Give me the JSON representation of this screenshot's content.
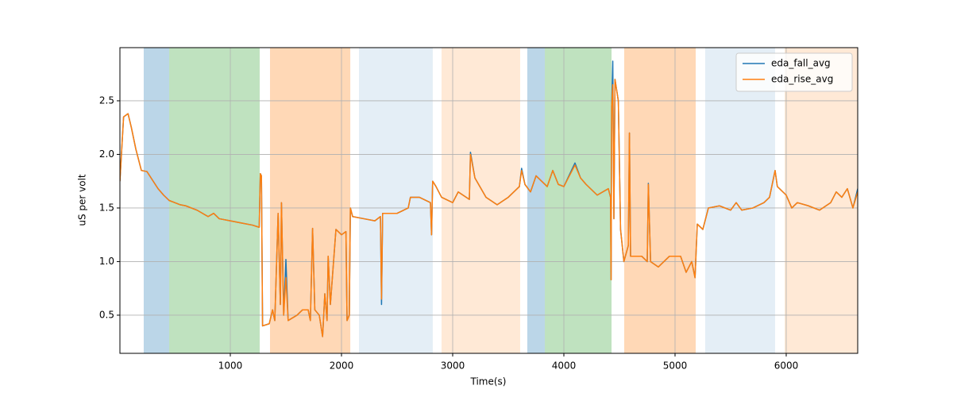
{
  "chart_data": {
    "type": "line",
    "xlabel": "Time(s)",
    "ylabel": "uS per volt",
    "xlim": [
      7,
      6643
    ],
    "ylim": [
      0.144,
      2.996
    ],
    "xticks": [
      1000,
      2000,
      3000,
      4000,
      5000,
      6000
    ],
    "yticks": [
      0.5,
      {
        "value": 1,
        "label": "1.0"
      },
      1.5,
      {
        "value": 2,
        "label": "2.0"
      },
      2.5
    ],
    "grid": true,
    "legend": "upper right",
    "spans": [
      {
        "start": 221,
        "end": 450,
        "color": "#1f77b4",
        "alpha": 0.3
      },
      {
        "start": 450,
        "end": 1264,
        "color": "#2ca02c",
        "alpha": 0.3
      },
      {
        "start": 1357,
        "end": 2079,
        "color": "#ff7f0e",
        "alpha": 0.3
      },
      {
        "start": 2157,
        "end": 2821,
        "color": "#1f77b4",
        "alpha": 0.12
      },
      {
        "start": 2900,
        "end": 3607,
        "color": "#ff7f0e",
        "alpha": 0.17
      },
      {
        "start": 3671,
        "end": 3829,
        "color": "#1f77b4",
        "alpha": 0.3
      },
      {
        "start": 3829,
        "end": 4429,
        "color": "#2ca02c",
        "alpha": 0.3
      },
      {
        "start": 4543,
        "end": 5186,
        "color": "#ff7f0e",
        "alpha": 0.3
      },
      {
        "start": 5271,
        "end": 5900,
        "color": "#1f77b4",
        "alpha": 0.12
      },
      {
        "start": 5986,
        "end": 6643,
        "color": "#ff7f0e",
        "alpha": 0.17
      }
    ],
    "x": [
      7,
      40,
      80,
      110,
      150,
      200,
      250,
      300,
      350,
      400,
      450,
      500,
      550,
      600,
      700,
      800,
      850,
      900,
      1000,
      1100,
      1200,
      1260,
      1270,
      1280,
      1290,
      1350,
      1380,
      1400,
      1430,
      1450,
      1460,
      1480,
      1500,
      1520,
      1600,
      1650,
      1700,
      1720,
      1740,
      1760,
      1800,
      1830,
      1850,
      1870,
      1880,
      1900,
      1950,
      2000,
      2040,
      2050,
      2070,
      2080,
      2100,
      2200,
      2300,
      2350,
      2360,
      2370,
      2500,
      2600,
      2620,
      2700,
      2800,
      2810,
      2820,
      2850,
      2900,
      3000,
      3050,
      3150,
      3160,
      3200,
      3300,
      3400,
      3500,
      3600,
      3620,
      3650,
      3700,
      3750,
      3800,
      3850,
      3900,
      3950,
      4000,
      4100,
      4150,
      4200,
      4300,
      4400,
      4420,
      4425,
      4430,
      4440,
      4450,
      4460,
      4490,
      4510,
      4540,
      4580,
      4590,
      4600,
      4700,
      4750,
      4760,
      4780,
      4850,
      4950,
      5050,
      5100,
      5150,
      5180,
      5200,
      5250,
      5300,
      5400,
      5500,
      5550,
      5600,
      5700,
      5800,
      5850,
      5900,
      5920,
      6000,
      6050,
      6100,
      6200,
      6300,
      6400,
      6450,
      6500,
      6550,
      6600,
      6643
    ],
    "series": [
      {
        "name": "eda_fall_avg",
        "color": "#1f77b4",
        "values": [
          1.75,
          2.35,
          2.38,
          2.25,
          2.05,
          1.85,
          1.84,
          1.76,
          1.68,
          1.62,
          1.57,
          1.55,
          1.53,
          1.52,
          1.48,
          1.42,
          1.45,
          1.4,
          1.38,
          1.36,
          1.34,
          1.32,
          1.82,
          1.8,
          0.4,
          0.42,
          0.55,
          0.45,
          1.45,
          0.6,
          1.55,
          0.5,
          1.02,
          0.45,
          0.5,
          0.55,
          0.55,
          0.45,
          1.31,
          0.55,
          0.5,
          0.3,
          0.7,
          0.45,
          1.05,
          0.6,
          1.3,
          1.25,
          1.28,
          0.45,
          0.5,
          1.5,
          1.42,
          1.4,
          1.38,
          1.42,
          0.6,
          1.45,
          1.45,
          1.5,
          1.6,
          1.6,
          1.55,
          1.25,
          1.75,
          1.7,
          1.6,
          1.55,
          1.65,
          1.58,
          2.02,
          1.78,
          1.6,
          1.53,
          1.6,
          1.7,
          1.87,
          1.72,
          1.65,
          1.8,
          1.75,
          1.7,
          1.85,
          1.72,
          1.7,
          1.92,
          1.78,
          1.72,
          1.62,
          1.68,
          1.6,
          0.83,
          2.45,
          2.87,
          1.4,
          2.7,
          2.5,
          1.3,
          1.0,
          1.15,
          2.2,
          1.05,
          1.05,
          1.0,
          1.73,
          1.0,
          0.95,
          1.05,
          1.05,
          0.9,
          1.0,
          0.85,
          1.35,
          1.3,
          1.5,
          1.52,
          1.48,
          1.55,
          1.48,
          1.5,
          1.55,
          1.6,
          1.85,
          1.7,
          1.62,
          1.5,
          1.55,
          1.52,
          1.48,
          1.55,
          1.65,
          1.6,
          1.68,
          1.5,
          1.68
        ]
      },
      {
        "name": "eda_rise_avg",
        "color": "#ff7f0e",
        "values": [
          1.75,
          2.35,
          2.38,
          2.25,
          2.05,
          1.85,
          1.84,
          1.76,
          1.68,
          1.62,
          1.57,
          1.55,
          1.53,
          1.52,
          1.48,
          1.42,
          1.45,
          1.4,
          1.38,
          1.36,
          1.34,
          1.32,
          1.82,
          1.8,
          0.4,
          0.42,
          0.55,
          0.45,
          1.45,
          0.6,
          1.55,
          0.5,
          0.85,
          0.45,
          0.5,
          0.55,
          0.55,
          0.45,
          1.31,
          0.55,
          0.5,
          0.3,
          0.7,
          0.45,
          1.05,
          0.6,
          1.3,
          1.25,
          1.28,
          0.45,
          0.5,
          1.5,
          1.42,
          1.4,
          1.38,
          1.42,
          0.65,
          1.45,
          1.45,
          1.5,
          1.6,
          1.6,
          1.55,
          1.25,
          1.75,
          1.7,
          1.6,
          1.55,
          1.65,
          1.58,
          2.0,
          1.78,
          1.6,
          1.53,
          1.6,
          1.7,
          1.85,
          1.72,
          1.65,
          1.8,
          1.75,
          1.7,
          1.85,
          1.72,
          1.7,
          1.9,
          1.78,
          1.72,
          1.62,
          1.68,
          1.6,
          0.83,
          2.45,
          2.65,
          1.4,
          2.7,
          2.5,
          1.3,
          1.0,
          1.15,
          2.2,
          1.05,
          1.05,
          1.0,
          1.72,
          1.0,
          0.95,
          1.05,
          1.05,
          0.9,
          1.0,
          0.85,
          1.35,
          1.3,
          1.5,
          1.52,
          1.48,
          1.55,
          1.48,
          1.5,
          1.55,
          1.6,
          1.85,
          1.7,
          1.62,
          1.5,
          1.55,
          1.52,
          1.48,
          1.55,
          1.65,
          1.6,
          1.68,
          1.5,
          1.65
        ]
      }
    ]
  }
}
